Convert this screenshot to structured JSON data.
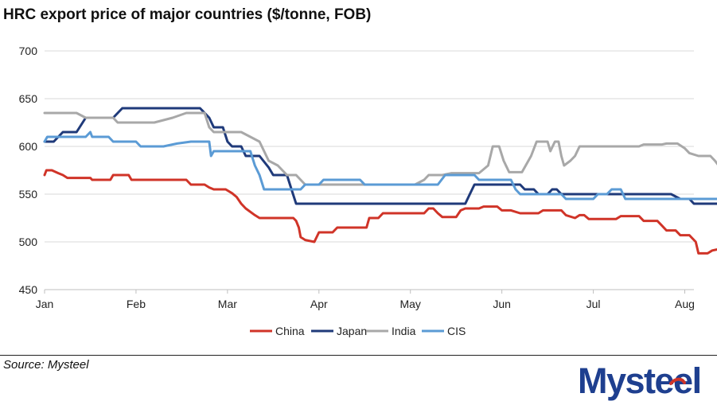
{
  "brand": "Mysteel",
  "source": "Source: Mysteel",
  "chart_data": {
    "type": "line",
    "title": "HRC export price of major countries ($/tonne, FOB)",
    "xlabel": "",
    "ylabel": "",
    "ylim": [
      450,
      700
    ],
    "yticks": [
      450,
      500,
      550,
      600,
      650,
      700
    ],
    "xlim": [
      0,
      7.1
    ],
    "xticks": [
      {
        "label": "Jan",
        "x": 0
      },
      {
        "label": "Feb",
        "x": 1
      },
      {
        "label": "Mar",
        "x": 2
      },
      {
        "label": "Apr",
        "x": 3
      },
      {
        "label": "May",
        "x": 4
      },
      {
        "label": "Jun",
        "x": 5
      },
      {
        "label": "Jul",
        "x": 6
      },
      {
        "label": "Aug",
        "x": 7
      }
    ],
    "grid": true,
    "legend": "bottom-center",
    "series": [
      {
        "name": "China",
        "color": "#d03428",
        "points": [
          [
            0,
            570
          ],
          [
            0.02,
            575
          ],
          [
            0.08,
            575
          ],
          [
            0.15,
            572
          ],
          [
            0.2,
            570
          ],
          [
            0.25,
            567
          ],
          [
            0.5,
            567
          ],
          [
            0.52,
            565
          ],
          [
            0.72,
            565
          ],
          [
            0.75,
            570
          ],
          [
            0.92,
            570
          ],
          [
            0.95,
            565
          ],
          [
            1.55,
            565
          ],
          [
            1.6,
            560
          ],
          [
            1.75,
            560
          ],
          [
            1.8,
            557
          ],
          [
            1.85,
            555
          ],
          [
            1.98,
            555
          ],
          [
            2.05,
            551
          ],
          [
            2.1,
            547
          ],
          [
            2.15,
            540
          ],
          [
            2.2,
            535
          ],
          [
            2.3,
            528
          ],
          [
            2.35,
            525
          ],
          [
            2.72,
            525
          ],
          [
            2.75,
            522
          ],
          [
            2.78,
            515
          ],
          [
            2.8,
            505
          ],
          [
            2.85,
            502
          ],
          [
            2.95,
            500
          ],
          [
            3.0,
            510
          ],
          [
            3.15,
            510
          ],
          [
            3.2,
            515
          ],
          [
            3.52,
            515
          ],
          [
            3.55,
            525
          ],
          [
            3.65,
            525
          ],
          [
            3.7,
            530
          ],
          [
            4.15,
            530
          ],
          [
            4.2,
            535
          ],
          [
            4.25,
            535
          ],
          [
            4.3,
            530
          ],
          [
            4.35,
            526
          ],
          [
            4.5,
            526
          ],
          [
            4.55,
            533
          ],
          [
            4.6,
            535
          ],
          [
            4.75,
            535
          ],
          [
            4.8,
            537
          ],
          [
            4.95,
            537
          ],
          [
            5.0,
            533
          ],
          [
            5.1,
            533
          ],
          [
            5.2,
            530
          ],
          [
            5.4,
            530
          ],
          [
            5.45,
            533
          ],
          [
            5.65,
            533
          ],
          [
            5.7,
            528
          ],
          [
            5.8,
            525
          ],
          [
            5.85,
            528
          ],
          [
            5.9,
            528
          ],
          [
            5.95,
            524
          ],
          [
            6.25,
            524
          ],
          [
            6.3,
            527
          ],
          [
            6.5,
            527
          ],
          [
            6.55,
            522
          ],
          [
            6.7,
            522
          ],
          [
            6.75,
            517
          ],
          [
            6.8,
            512
          ],
          [
            6.9,
            512
          ],
          [
            6.95,
            507
          ],
          [
            7.05,
            507
          ],
          [
            7.12,
            500
          ],
          [
            7.15,
            488
          ],
          [
            7.25,
            488
          ],
          [
            7.3,
            491
          ],
          [
            7.35,
            492
          ]
        ]
      },
      {
        "name": "Japan",
        "color": "#1f3a7a",
        "points": [
          [
            0,
            605
          ],
          [
            0.1,
            605
          ],
          [
            0.2,
            615
          ],
          [
            0.35,
            615
          ],
          [
            0.45,
            630
          ],
          [
            0.75,
            630
          ],
          [
            0.85,
            640
          ],
          [
            1.7,
            640
          ],
          [
            1.8,
            630
          ],
          [
            1.85,
            620
          ],
          [
            1.95,
            620
          ],
          [
            2.0,
            605
          ],
          [
            2.05,
            600
          ],
          [
            2.15,
            600
          ],
          [
            2.2,
            590
          ],
          [
            2.35,
            590
          ],
          [
            2.45,
            578
          ],
          [
            2.5,
            570
          ],
          [
            2.65,
            570
          ],
          [
            2.7,
            555
          ],
          [
            2.75,
            540
          ],
          [
            4.6,
            540
          ],
          [
            4.65,
            550
          ],
          [
            4.7,
            560
          ],
          [
            5.2,
            560
          ],
          [
            5.25,
            555
          ],
          [
            5.35,
            555
          ],
          [
            5.4,
            550
          ],
          [
            5.5,
            550
          ],
          [
            5.55,
            555
          ],
          [
            5.6,
            555
          ],
          [
            5.65,
            550
          ],
          [
            6.3,
            550
          ],
          [
            6.85,
            550
          ],
          [
            6.95,
            545
          ],
          [
            7.05,
            545
          ],
          [
            7.1,
            540
          ],
          [
            7.35,
            540
          ]
        ]
      },
      {
        "name": "India",
        "color": "#a8a8a8",
        "points": [
          [
            0,
            635
          ],
          [
            0.35,
            635
          ],
          [
            0.45,
            630
          ],
          [
            0.75,
            630
          ],
          [
            0.8,
            625
          ],
          [
            1.2,
            625
          ],
          [
            1.4,
            630
          ],
          [
            1.55,
            635
          ],
          [
            1.75,
            635
          ],
          [
            1.8,
            620
          ],
          [
            1.85,
            615
          ],
          [
            2.15,
            615
          ],
          [
            2.25,
            610
          ],
          [
            2.35,
            605
          ],
          [
            2.45,
            585
          ],
          [
            2.55,
            580
          ],
          [
            2.65,
            570
          ],
          [
            2.75,
            570
          ],
          [
            2.8,
            565
          ],
          [
            2.85,
            560
          ],
          [
            4.05,
            560
          ],
          [
            4.15,
            565
          ],
          [
            4.2,
            570
          ],
          [
            4.35,
            570
          ],
          [
            4.45,
            572
          ],
          [
            4.75,
            572
          ],
          [
            4.85,
            580
          ],
          [
            4.9,
            600
          ],
          [
            4.97,
            600
          ],
          [
            5.02,
            585
          ],
          [
            5.08,
            573
          ],
          [
            5.22,
            573
          ],
          [
            5.32,
            590
          ],
          [
            5.38,
            605
          ],
          [
            5.5,
            605
          ],
          [
            5.53,
            595
          ],
          [
            5.58,
            605
          ],
          [
            5.62,
            605
          ],
          [
            5.65,
            590
          ],
          [
            5.68,
            580
          ],
          [
            5.75,
            585
          ],
          [
            5.8,
            590
          ],
          [
            5.85,
            600
          ],
          [
            6.5,
            600
          ],
          [
            6.55,
            602
          ],
          [
            6.75,
            602
          ],
          [
            6.8,
            603
          ],
          [
            6.92,
            603
          ],
          [
            7.0,
            598
          ],
          [
            7.05,
            593
          ],
          [
            7.15,
            590
          ],
          [
            7.28,
            590
          ],
          [
            7.33,
            585
          ],
          [
            7.37,
            580
          ]
        ]
      },
      {
        "name": "CIS",
        "color": "#5b9bd5",
        "points": [
          [
            0,
            605
          ],
          [
            0.03,
            610
          ],
          [
            0.45,
            610
          ],
          [
            0.5,
            615
          ],
          [
            0.52,
            610
          ],
          [
            0.7,
            610
          ],
          [
            0.75,
            605
          ],
          [
            1.0,
            605
          ],
          [
            1.05,
            600
          ],
          [
            1.3,
            600
          ],
          [
            1.45,
            603
          ],
          [
            1.6,
            605
          ],
          [
            1.8,
            605
          ],
          [
            1.82,
            590
          ],
          [
            1.85,
            595
          ],
          [
            2.25,
            595
          ],
          [
            2.3,
            580
          ],
          [
            2.35,
            570
          ],
          [
            2.4,
            555
          ],
          [
            2.8,
            555
          ],
          [
            2.85,
            560
          ],
          [
            3.0,
            560
          ],
          [
            3.05,
            565
          ],
          [
            3.45,
            565
          ],
          [
            3.5,
            560
          ],
          [
            4.3,
            560
          ],
          [
            4.38,
            570
          ],
          [
            4.7,
            570
          ],
          [
            4.75,
            565
          ],
          [
            5.1,
            565
          ],
          [
            5.15,
            555
          ],
          [
            5.2,
            550
          ],
          [
            5.65,
            550
          ],
          [
            5.7,
            545
          ],
          [
            6.0,
            545
          ],
          [
            6.05,
            550
          ],
          [
            6.15,
            550
          ],
          [
            6.2,
            555
          ],
          [
            6.3,
            555
          ],
          [
            6.35,
            545
          ],
          [
            7.35,
            545
          ]
        ]
      }
    ]
  }
}
